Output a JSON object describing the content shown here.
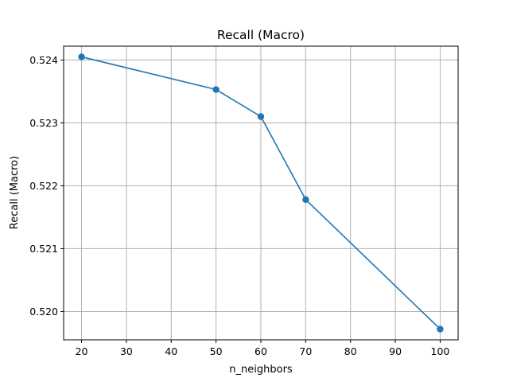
{
  "chart_data": {
    "type": "line",
    "title": "Recall (Macro)",
    "xlabel": "n_neighbors",
    "ylabel": "Recall (Macro)",
    "x": [
      20,
      50,
      60,
      70,
      100
    ],
    "series": [
      {
        "values": [
          0.52405,
          0.52353,
          0.5231,
          0.52178,
          0.51972
        ]
      }
    ],
    "xticks": [
      20,
      30,
      40,
      50,
      60,
      70,
      80,
      90,
      100
    ],
    "xtick_labels": [
      "20",
      "30",
      "40",
      "50",
      "60",
      "70",
      "80",
      "90",
      "100"
    ],
    "yticks": [
      0.52,
      0.521,
      0.522,
      0.523,
      0.524
    ],
    "ytick_labels": [
      "0.520",
      "0.521",
      "0.522",
      "0.523",
      "0.524"
    ],
    "xlim": [
      16,
      104
    ],
    "ylim": [
      0.51955,
      0.52422
    ],
    "grid": true,
    "marker": "circle",
    "colors": {
      "series": "#1f77b4",
      "grid": "#b0b0b0"
    }
  }
}
